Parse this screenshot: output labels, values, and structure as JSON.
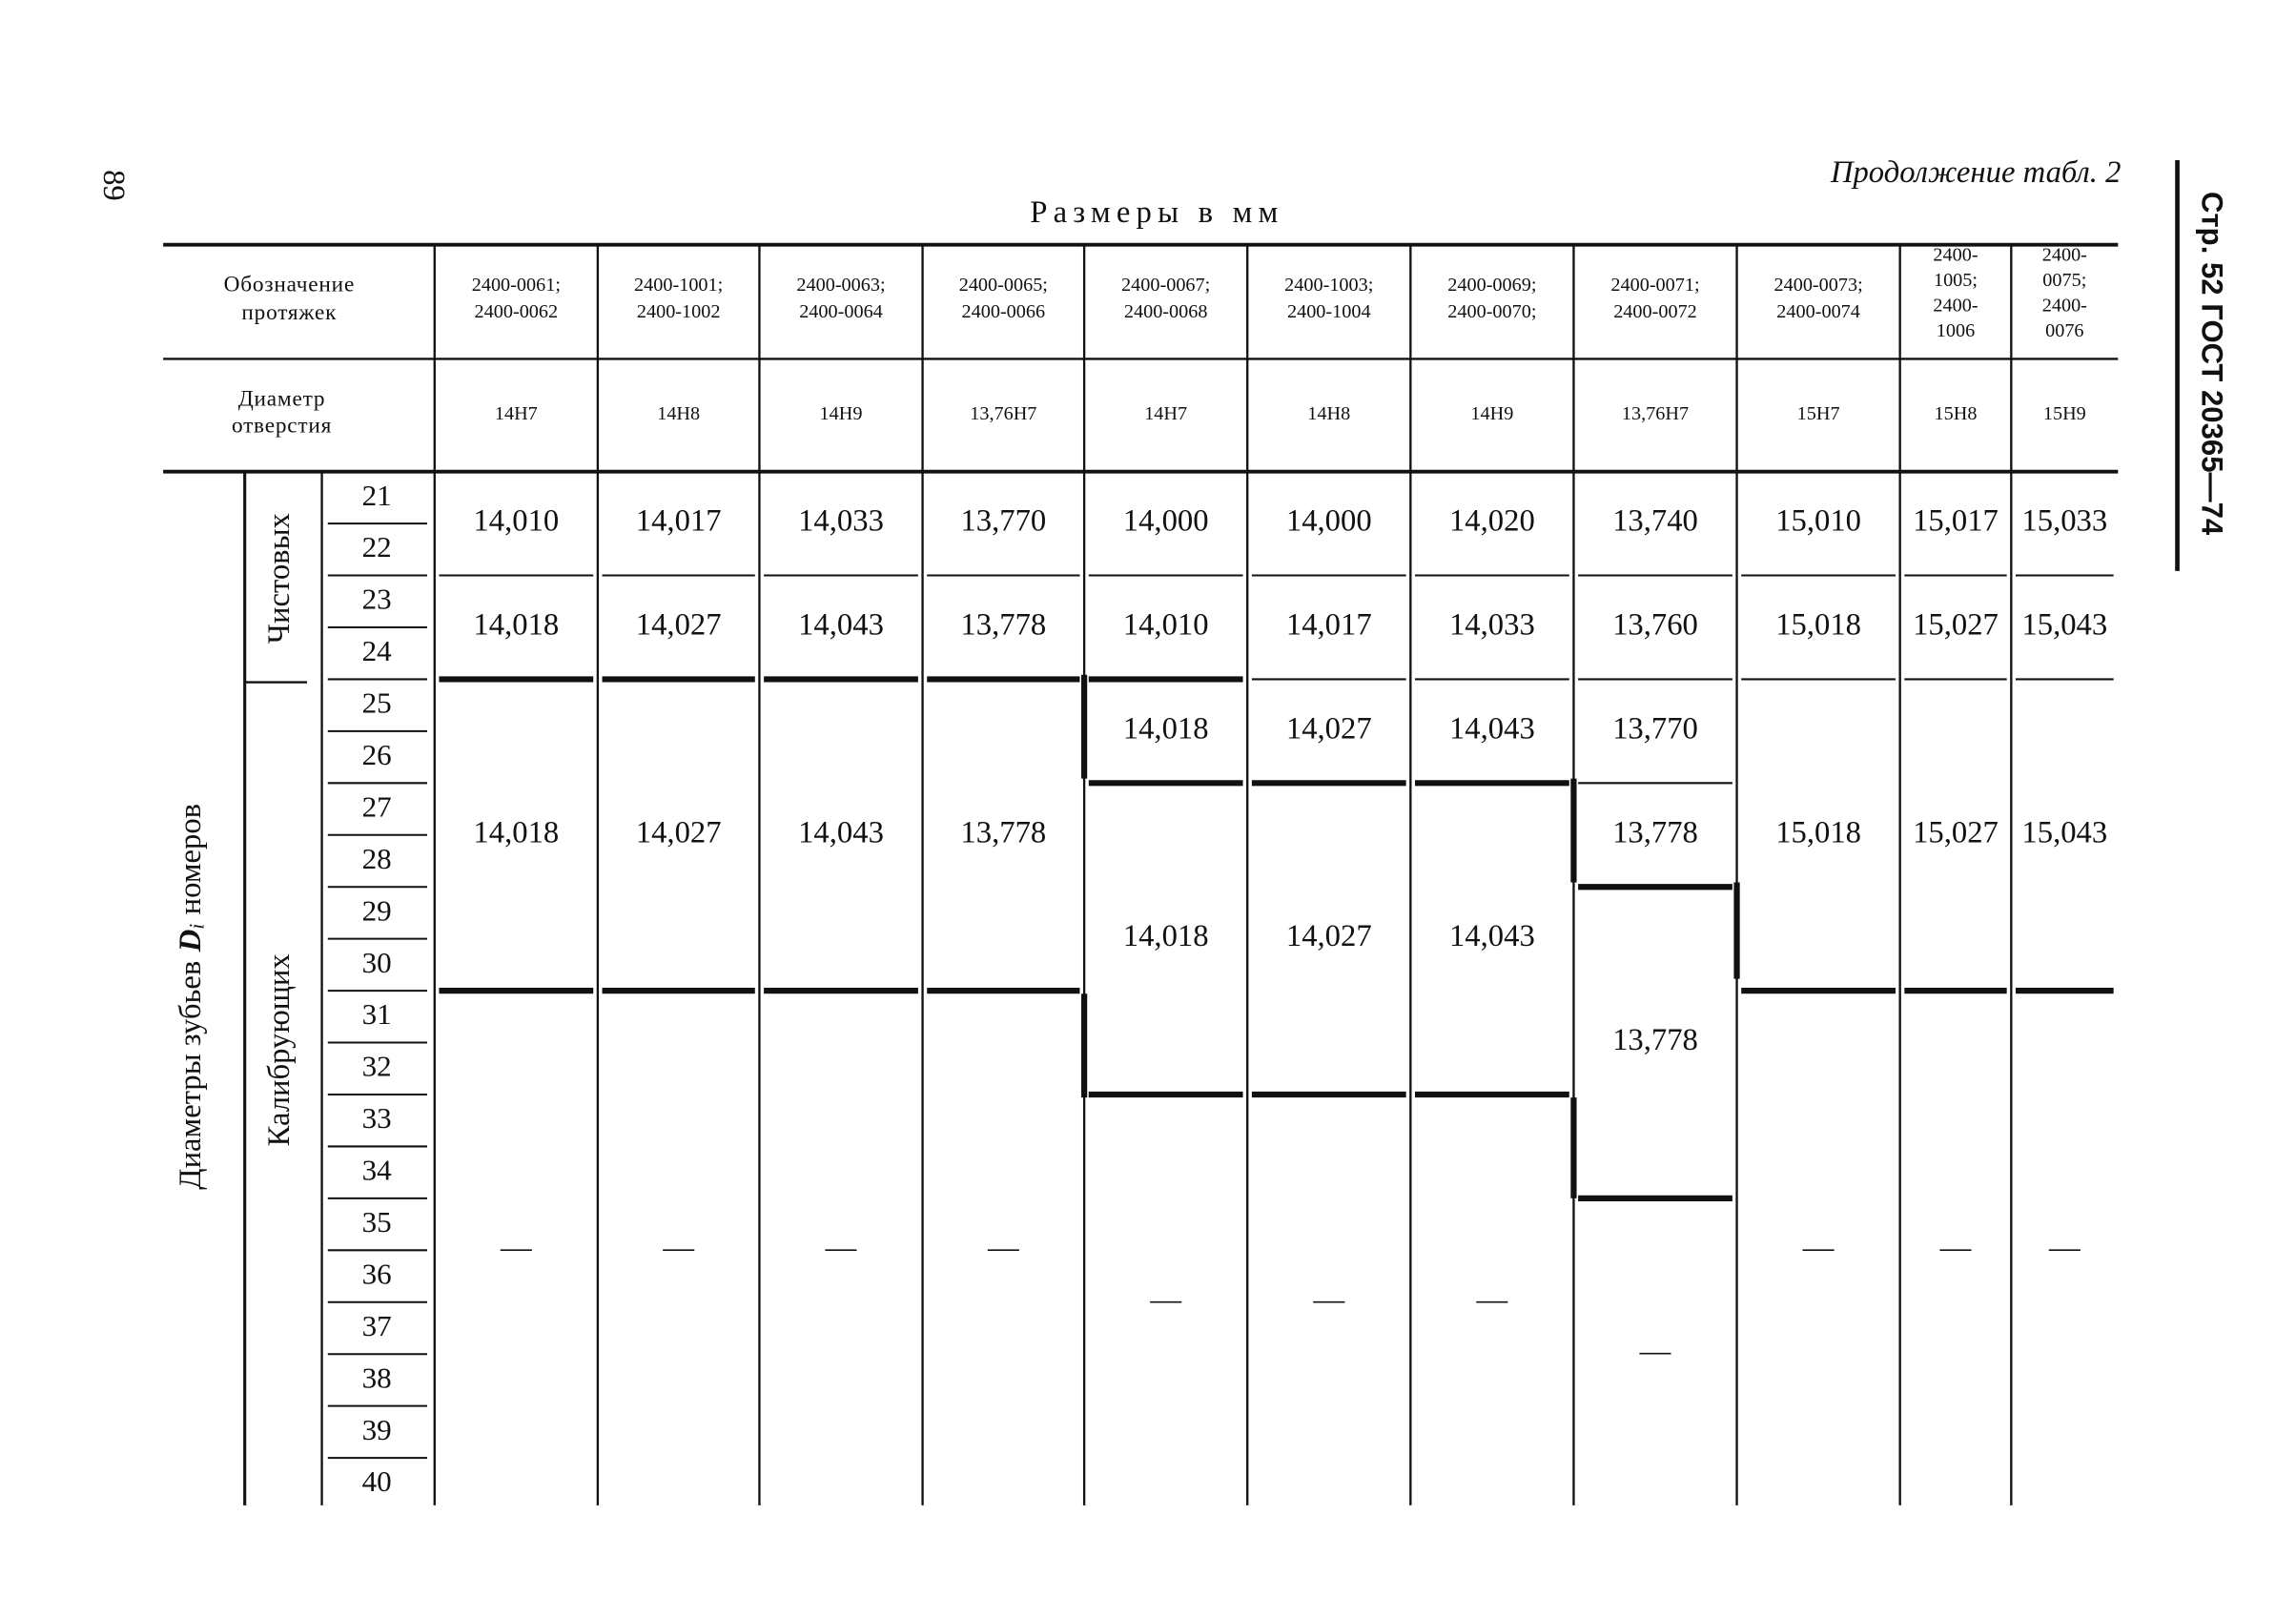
{
  "page_number": "89",
  "continuation": "Продолжение табл. 2",
  "units": "Размеры в мм",
  "side_header": "Стр. 52 ГОСТ 20365—74",
  "table": {
    "designation_label": [
      "Обозначение",
      "протяжек"
    ],
    "diameter_label": [
      "Диаметр",
      "отверстия"
    ],
    "row_group_label": [
      "Диаметры зубьев",
      "D",
      "i",
      "номеров"
    ],
    "subgroups": [
      "Чистовых",
      "Калибрующих"
    ],
    "row_numbers": [
      21,
      22,
      23,
      24,
      25,
      26,
      27,
      28,
      29,
      30,
      31,
      32,
      33,
      34,
      35,
      36,
      37,
      38,
      39,
      40
    ],
    "columns": [
      {
        "designation": [
          "2400-0061;",
          "2400-0062"
        ],
        "diameter": "14H7",
        "cells": [
          "14,010",
          null,
          "14,018",
          null,
          "14,018",
          null,
          null,
          null,
          null,
          null,
          "—",
          null,
          null,
          null,
          null,
          null,
          null,
          null,
          null,
          null
        ]
      },
      {
        "designation": [
          "2400-1001;",
          "2400-1002"
        ],
        "diameter": "14H8",
        "cells": [
          "14,017",
          null,
          "14,027",
          null,
          "14,027",
          null,
          null,
          null,
          null,
          null,
          "—",
          null,
          null,
          null,
          null,
          null,
          null,
          null,
          null,
          null
        ]
      },
      {
        "designation": [
          "2400-0063;",
          "2400-0064"
        ],
        "diameter": "14H9",
        "cells": [
          "14,033",
          null,
          "14,043",
          null,
          "14,043",
          null,
          null,
          null,
          null,
          null,
          "—",
          null,
          null,
          null,
          null,
          null,
          null,
          null,
          null,
          null
        ]
      },
      {
        "designation": [
          "2400-0065;",
          "2400-0066"
        ],
        "diameter": "13,76H7",
        "cells": [
          "13,770",
          null,
          "13,778",
          null,
          "13,778",
          null,
          null,
          null,
          null,
          null,
          "—",
          null,
          null,
          null,
          null,
          null,
          null,
          null,
          null,
          null
        ]
      },
      {
        "designation": [
          "2400-0067;",
          "2400-0068"
        ],
        "diameter": "14H7",
        "cells": [
          "14,000",
          null,
          "14,010",
          null,
          "14,018",
          null,
          "14,018",
          null,
          null,
          null,
          null,
          null,
          "—",
          null,
          null,
          null,
          null,
          null,
          null,
          null
        ]
      },
      {
        "designation": [
          "2400-1003;",
          "2400-1004"
        ],
        "diameter": "14H8",
        "cells": [
          "14,000",
          null,
          "14,017",
          null,
          "14,027",
          null,
          "14,027",
          null,
          null,
          null,
          null,
          null,
          "—",
          null,
          null,
          null,
          null,
          null,
          null,
          null
        ]
      },
      {
        "designation": [
          "2400-0069;",
          "2400-0070;"
        ],
        "diameter": "14H9",
        "cells": [
          "14,020",
          null,
          "14,033",
          null,
          "14,043",
          null,
          "14,043",
          null,
          null,
          null,
          null,
          null,
          "—",
          null,
          null,
          null,
          null,
          null,
          null,
          null
        ]
      },
      {
        "designation": [
          "2400-0071;",
          "2400-0072"
        ],
        "diameter": "13,76H7",
        "cells": [
          "13,740",
          null,
          "13,760",
          null,
          "13,770",
          null,
          "13,778",
          null,
          "13,778",
          null,
          null,
          null,
          null,
          null,
          "—",
          null,
          null,
          null,
          null,
          null
        ]
      },
      {
        "designation": [
          "2400-0073;",
          "2400-0074"
        ],
        "diameter": "15H7",
        "cells": [
          "15,010",
          null,
          "15,018",
          null,
          "15,018",
          null,
          null,
          null,
          null,
          null,
          "—",
          null,
          null,
          null,
          null,
          null,
          null,
          null,
          null,
          null
        ]
      },
      {
        "designation": [
          "2400-",
          "1005;",
          "2400-",
          "1006"
        ],
        "diameter": "15H8",
        "cells": [
          "15,017",
          null,
          "15,027",
          null,
          "15,027",
          null,
          null,
          null,
          null,
          null,
          "—",
          null,
          null,
          null,
          null,
          null,
          null,
          null,
          null,
          null
        ]
      },
      {
        "designation": [
          "2400-",
          "0075;",
          "2400-",
          "0076"
        ],
        "diameter": "15H9",
        "cells": [
          "15,033",
          null,
          "15,043",
          null,
          "15,043",
          null,
          null,
          null,
          null,
          null,
          "—",
          null,
          null,
          null,
          null,
          null,
          null,
          null,
          null,
          null
        ]
      }
    ]
  }
}
